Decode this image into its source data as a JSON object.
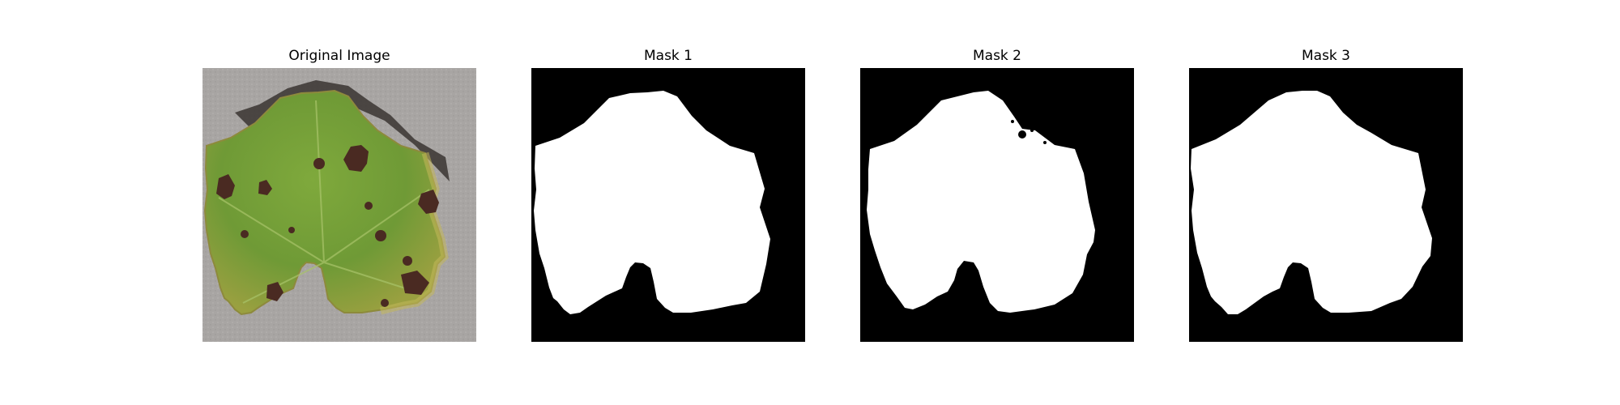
{
  "figure": {
    "panels": [
      {
        "title": "Original Image",
        "kind": "photo"
      },
      {
        "title": "Mask 1",
        "kind": "mask"
      },
      {
        "title": "Mask 2",
        "kind": "mask"
      },
      {
        "title": "Mask 3",
        "kind": "mask"
      }
    ],
    "colors": {
      "mask_background": "#000000",
      "mask_foreground": "#ffffff",
      "photo_background": "#a8a5a3",
      "leaf_green": "#6f9a36",
      "leaf_yellow": "#b4b54e",
      "lesion_brown": "#4a2a22",
      "shadow": "#3a3431"
    }
  }
}
